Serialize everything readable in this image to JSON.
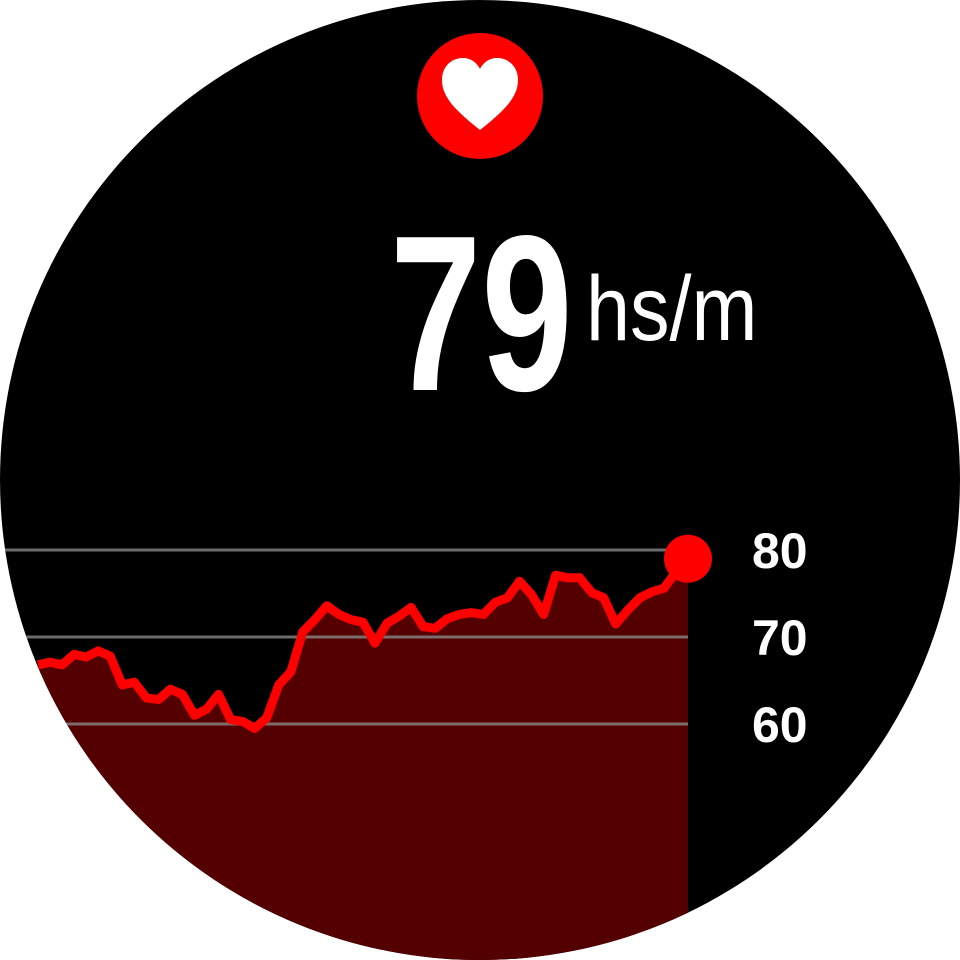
{
  "reading": {
    "value": 79,
    "unit": "hs/m"
  },
  "chart_data": {
    "type": "line",
    "series": [
      {
        "color": "#ff0000",
        "fill": "#550000",
        "values": [
          66.8,
          67.1,
          66.8,
          68.0,
          67.7,
          68.4,
          67.8,
          64.5,
          64.8,
          63.0,
          62.8,
          64.0,
          63.4,
          61.0,
          61.7,
          63.4,
          60.5,
          60.3,
          59.5,
          60.7,
          64.5,
          66.0,
          70.6,
          72.0,
          73.6,
          72.6,
          72.0,
          71.7,
          69.3,
          71.6,
          72.4,
          73.4,
          71.2,
          71.0,
          72.1,
          72.6,
          72.8,
          72.6,
          74.0,
          74.5,
          76.4,
          74.9,
          72.6,
          77.1,
          76.8,
          76.8,
          75.1,
          74.5,
          71.5,
          73.1,
          74.5,
          75.2,
          75.6,
          77.5,
          79
        ]
      }
    ],
    "ylim": [
      35,
      85
    ],
    "yticks": [
      60,
      70,
      80
    ],
    "grid": true
  }
}
